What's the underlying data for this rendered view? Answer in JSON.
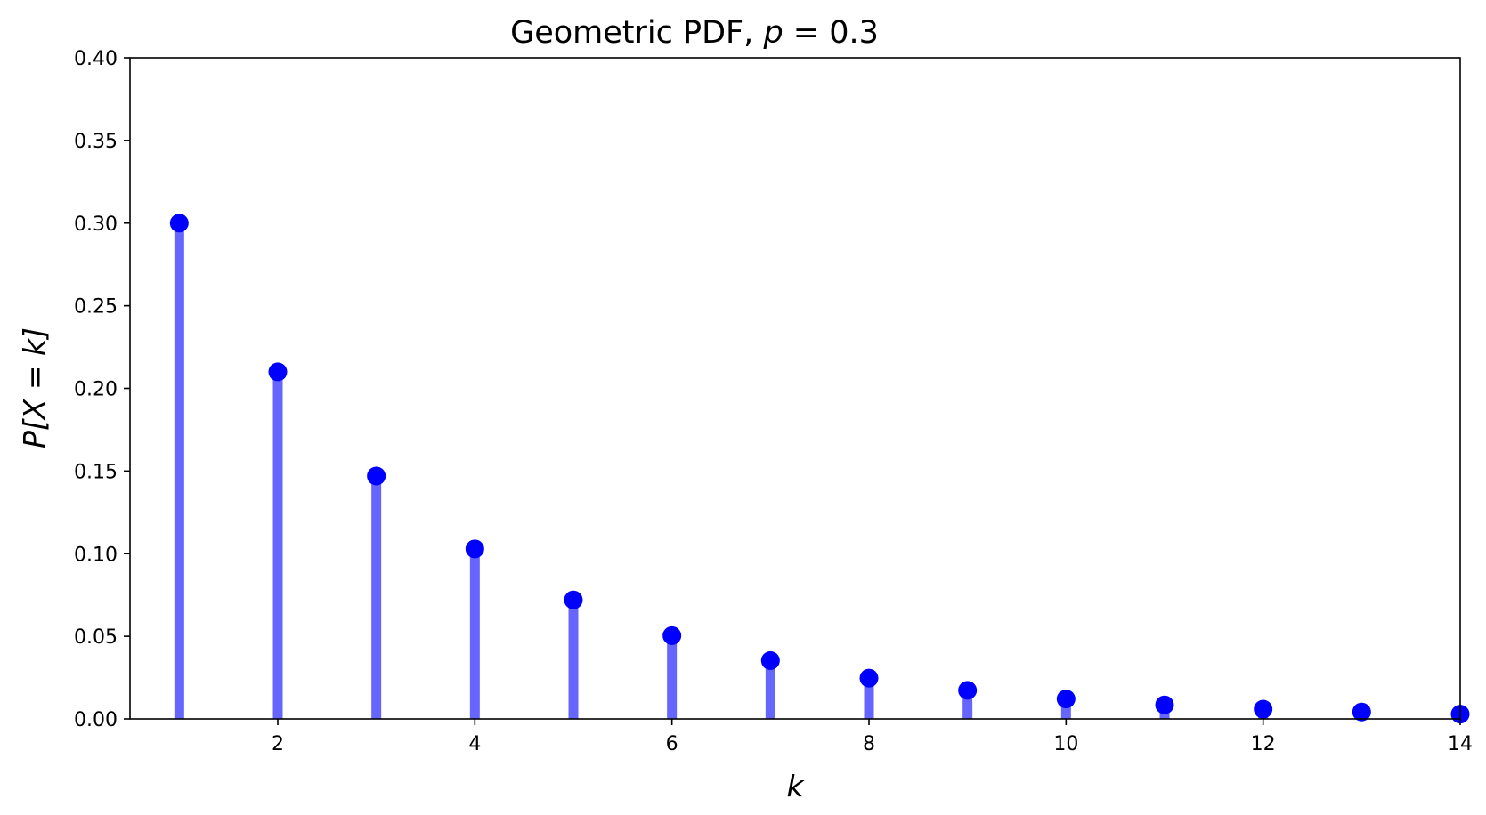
{
  "chart_data": {
    "type": "stem",
    "title": {
      "prefix": "Geometric PDF, ",
      "var": "p",
      "suffix": " = 0.3"
    },
    "xlabel": "k",
    "ylabel": "P[X = k]",
    "xlim": [
      0.5,
      14
    ],
    "ylim": [
      0,
      0.4
    ],
    "xticks": [
      2,
      4,
      6,
      8,
      10,
      12,
      14
    ],
    "yticks": [
      0.0,
      0.05,
      0.1,
      0.15,
      0.2,
      0.25,
      0.3,
      0.35,
      0.4
    ],
    "ytick_labels": [
      "0.00",
      "0.05",
      "0.10",
      "0.15",
      "0.20",
      "0.25",
      "0.30",
      "0.35",
      "0.40"
    ],
    "x": [
      1,
      2,
      3,
      4,
      5,
      6,
      7,
      8,
      9,
      10,
      11,
      12,
      13,
      14
    ],
    "y": [
      0.3,
      0.21,
      0.147,
      0.1029,
      0.072,
      0.0504,
      0.0353,
      0.0247,
      0.0173,
      0.0121,
      0.0085,
      0.0059,
      0.0042,
      0.0029
    ],
    "stem_color": "#6666ff",
    "marker_color": "#0000ff",
    "grid": false,
    "legend": null
  }
}
